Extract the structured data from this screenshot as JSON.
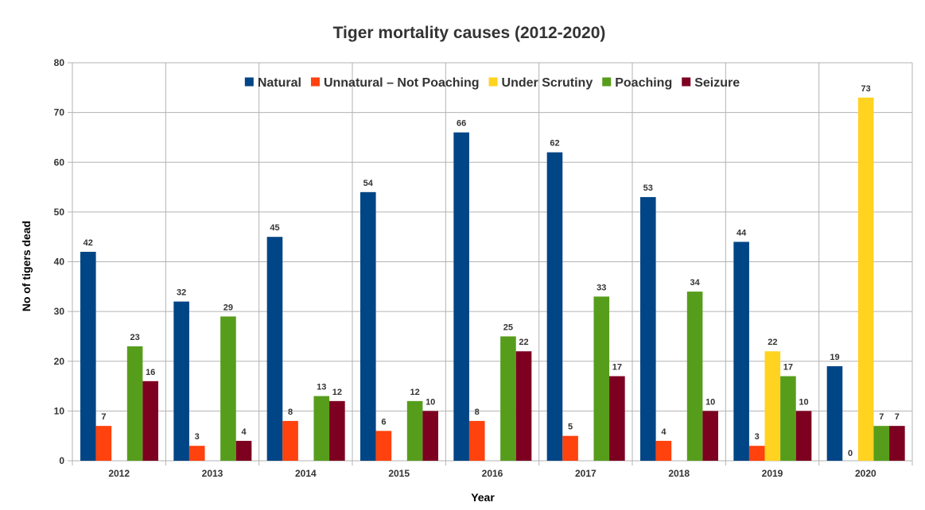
{
  "chart_data": {
    "type": "bar",
    "title": "Tiger mortality causes (2012-2020)",
    "xlabel": "Year",
    "ylabel": "No of tigers dead",
    "categories": [
      "2012",
      "2013",
      "2014",
      "2015",
      "2016",
      "2017",
      "2018",
      "2019",
      "2020"
    ],
    "ylim": [
      0,
      80
    ],
    "yticks": [
      0,
      10,
      20,
      30,
      40,
      50,
      60,
      70,
      80
    ],
    "grid": true,
    "legend_position": "top",
    "series": [
      {
        "name": "Natural",
        "color": "#004586",
        "values": [
          42,
          32,
          45,
          54,
          66,
          62,
          53,
          44,
          19
        ]
      },
      {
        "name": "Unnatural – Not Poaching",
        "color": "#ff420e",
        "values": [
          7,
          3,
          8,
          6,
          8,
          5,
          4,
          3,
          null
        ]
      },
      {
        "name": "Under Scrutiny",
        "color": "#ffd320",
        "values": [
          null,
          null,
          null,
          null,
          null,
          null,
          null,
          22,
          73
        ]
      },
      {
        "name": "Poaching",
        "color": "#579d1c",
        "values": [
          23,
          29,
          13,
          12,
          25,
          33,
          34,
          17,
          7
        ]
      },
      {
        "name": "Seizure",
        "color": "#7e0021",
        "values": [
          16,
          4,
          12,
          10,
          22,
          17,
          10,
          10,
          7
        ]
      }
    ],
    "extra_labels": [
      {
        "category": "2020",
        "series": "Unnatural – Not Poaching",
        "text": "0"
      }
    ]
  }
}
